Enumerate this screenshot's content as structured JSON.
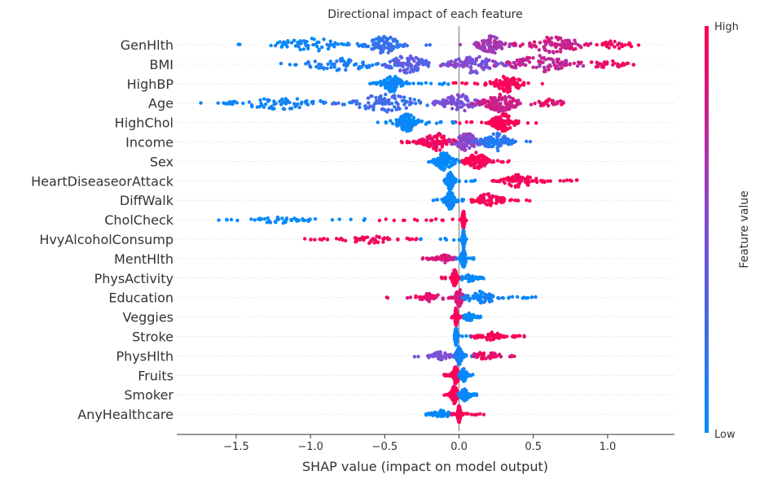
{
  "chart_data": {
    "type": "scatter",
    "subtype": "beeswarm",
    "title": "Directional impact of each feature",
    "xlabel": "SHAP value (impact on model output)",
    "xlim": [
      -1.9,
      1.45
    ],
    "xticks": [
      -1.5,
      -1.0,
      -0.5,
      0.0,
      0.5,
      1.0
    ],
    "xtick_labels": [
      "−1.5",
      "−1.0",
      "−0.5",
      "0.0",
      "0.5",
      "1.0"
    ],
    "colorbar": {
      "label": "Feature value",
      "high_label": "High",
      "low_label": "Low",
      "high_color": "#ff0052",
      "low_color": "#008bfb"
    },
    "features": [
      {
        "name": "GenHlth",
        "min": -1.5,
        "max": 1.22,
        "clusters": [
          {
            "x": -0.5,
            "spread": 0.15,
            "value": 0.2,
            "weight": 3
          },
          {
            "x": -1.0,
            "spread": 0.3,
            "value": 0.05,
            "weight": 2
          },
          {
            "x": 0.22,
            "spread": 0.12,
            "value": 0.65,
            "weight": 3
          },
          {
            "x": 0.65,
            "spread": 0.22,
            "value": 0.8,
            "weight": 3
          },
          {
            "x": 1.05,
            "spread": 0.12,
            "value": 0.95,
            "weight": 1
          }
        ]
      },
      {
        "name": "BMI",
        "min": -1.22,
        "max": 1.3,
        "clusters": [
          {
            "x": -0.8,
            "spread": 0.3,
            "value": 0.1,
            "weight": 2
          },
          {
            "x": -0.35,
            "spread": 0.18,
            "value": 0.35,
            "weight": 3
          },
          {
            "x": 0.1,
            "spread": 0.2,
            "value": 0.5,
            "weight": 3
          },
          {
            "x": 0.55,
            "spread": 0.25,
            "value": 0.75,
            "weight": 3
          },
          {
            "x": 1.0,
            "spread": 0.15,
            "value": 0.95,
            "weight": 1
          }
        ]
      },
      {
        "name": "HighBP",
        "min": -0.6,
        "max": 0.6,
        "clusters": [
          {
            "x": -0.45,
            "spread": 0.08,
            "value": 0.0,
            "weight": 3
          },
          {
            "x": 0.33,
            "spread": 0.12,
            "value": 1.0,
            "weight": 3
          }
        ]
      },
      {
        "name": "Age",
        "min": -1.75,
        "max": 0.75,
        "clusters": [
          {
            "x": -1.2,
            "spread": 0.35,
            "value": 0.05,
            "weight": 2
          },
          {
            "x": -0.5,
            "spread": 0.3,
            "value": 0.25,
            "weight": 3
          },
          {
            "x": 0.0,
            "spread": 0.15,
            "value": 0.5,
            "weight": 3
          },
          {
            "x": 0.28,
            "spread": 0.15,
            "value": 0.8,
            "weight": 4
          },
          {
            "x": 0.6,
            "spread": 0.1,
            "value": 0.9,
            "weight": 1
          }
        ]
      },
      {
        "name": "HighChol",
        "min": -0.55,
        "max": 0.52,
        "clusters": [
          {
            "x": -0.35,
            "spread": 0.09,
            "value": 0.0,
            "weight": 3
          },
          {
            "x": 0.3,
            "spread": 0.1,
            "value": 1.0,
            "weight": 3
          }
        ]
      },
      {
        "name": "Income",
        "min": -0.4,
        "max": 0.48,
        "clusters": [
          {
            "x": -0.15,
            "spread": 0.12,
            "value": 0.95,
            "weight": 3
          },
          {
            "x": 0.05,
            "spread": 0.1,
            "value": 0.55,
            "weight": 3
          },
          {
            "x": 0.25,
            "spread": 0.12,
            "value": 0.15,
            "weight": 3
          }
        ]
      },
      {
        "name": "Sex",
        "min": -0.3,
        "max": 0.35,
        "clusters": [
          {
            "x": -0.1,
            "spread": 0.08,
            "value": 0.0,
            "weight": 3
          },
          {
            "x": 0.12,
            "spread": 0.09,
            "value": 1.0,
            "weight": 3
          }
        ]
      },
      {
        "name": "HeartDiseaseorAttack",
        "min": -0.1,
        "max": 0.85,
        "clusters": [
          {
            "x": -0.06,
            "spread": 0.03,
            "value": 0.0,
            "weight": 4
          },
          {
            "x": 0.4,
            "spread": 0.14,
            "value": 1.0,
            "weight": 2
          }
        ]
      },
      {
        "name": "DiffWalk",
        "min": -0.18,
        "max": 0.5,
        "clusters": [
          {
            "x": -0.06,
            "spread": 0.04,
            "value": 0.0,
            "weight": 4
          },
          {
            "x": 0.2,
            "spread": 0.12,
            "value": 1.0,
            "weight": 2
          }
        ]
      },
      {
        "name": "CholCheck",
        "min": -1.62,
        "max": 0.05,
        "clusters": [
          {
            "x": 0.03,
            "spread": 0.01,
            "value": 1.0,
            "weight": 4
          },
          {
            "x": -1.2,
            "spread": 0.2,
            "value": 0.0,
            "weight": 1
          }
        ]
      },
      {
        "name": "HvyAlcoholConsump",
        "min": -1.05,
        "max": 0.05,
        "clusters": [
          {
            "x": 0.03,
            "spread": 0.01,
            "value": 0.0,
            "weight": 4
          },
          {
            "x": -0.6,
            "spread": 0.18,
            "value": 1.0,
            "weight": 1
          }
        ]
      },
      {
        "name": "MentHlth",
        "min": -0.25,
        "max": 0.1,
        "clusters": [
          {
            "x": 0.03,
            "spread": 0.02,
            "value": 0.0,
            "weight": 4
          },
          {
            "x": -0.1,
            "spread": 0.06,
            "value": 0.85,
            "weight": 1
          }
        ]
      },
      {
        "name": "PhysActivity",
        "min": -0.12,
        "max": 0.18,
        "clusters": [
          {
            "x": -0.03,
            "spread": 0.02,
            "value": 1.0,
            "weight": 4
          },
          {
            "x": 0.08,
            "spread": 0.05,
            "value": 0.0,
            "weight": 1
          }
        ]
      },
      {
        "name": "Education",
        "min": -0.5,
        "max": 0.55,
        "clusters": [
          {
            "x": 0.0,
            "spread": 0.03,
            "value": 0.85,
            "weight": 3
          },
          {
            "x": 0.15,
            "spread": 0.12,
            "value": 0.05,
            "weight": 2
          },
          {
            "x": -0.2,
            "spread": 0.1,
            "value": 0.9,
            "weight": 1
          }
        ]
      },
      {
        "name": "Veggies",
        "min": -0.05,
        "max": 0.15,
        "clusters": [
          {
            "x": -0.02,
            "spread": 0.01,
            "value": 1.0,
            "weight": 4
          },
          {
            "x": 0.07,
            "spread": 0.04,
            "value": 0.0,
            "weight": 1
          }
        ]
      },
      {
        "name": "Stroke",
        "min": -0.05,
        "max": 0.45,
        "clusters": [
          {
            "x": -0.02,
            "spread": 0.01,
            "value": 0.0,
            "weight": 4
          },
          {
            "x": 0.22,
            "spread": 0.1,
            "value": 1.0,
            "weight": 1
          }
        ]
      },
      {
        "name": "PhysHlth",
        "min": -0.3,
        "max": 0.4,
        "clusters": [
          {
            "x": 0.0,
            "spread": 0.03,
            "value": 0.1,
            "weight": 4
          },
          {
            "x": -0.12,
            "spread": 0.08,
            "value": 0.5,
            "weight": 1
          },
          {
            "x": 0.18,
            "spread": 0.1,
            "value": 0.9,
            "weight": 1
          }
        ]
      },
      {
        "name": "Fruits",
        "min": -0.1,
        "max": 0.1,
        "clusters": [
          {
            "x": -0.02,
            "spread": 0.03,
            "value": 1.0,
            "weight": 3
          },
          {
            "x": 0.03,
            "spread": 0.03,
            "value": 0.0,
            "weight": 2
          }
        ]
      },
      {
        "name": "Smoker",
        "min": -0.1,
        "max": 0.12,
        "clusters": [
          {
            "x": -0.03,
            "spread": 0.03,
            "value": 1.0,
            "weight": 3
          },
          {
            "x": 0.04,
            "spread": 0.04,
            "value": 0.0,
            "weight": 2
          }
        ]
      },
      {
        "name": "AnyHealthcare",
        "min": -0.23,
        "max": 0.17,
        "clusters": [
          {
            "x": 0.0,
            "spread": 0.01,
            "value": 1.0,
            "weight": 4
          },
          {
            "x": -0.12,
            "spread": 0.06,
            "value": 0.0,
            "weight": 1
          }
        ]
      }
    ]
  }
}
